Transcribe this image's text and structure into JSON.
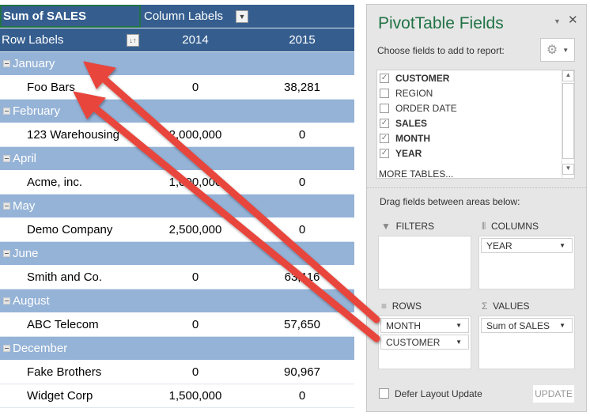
{
  "pivot": {
    "value_field": "Sum of SALES",
    "column_labels": "Column Labels",
    "row_labels": "Row Labels",
    "years": [
      "2014",
      "2015"
    ],
    "groups": [
      {
        "month": "January",
        "items": [
          {
            "customer": "Foo Bars",
            "y2014": "0",
            "y2015": "38,281"
          }
        ]
      },
      {
        "month": "February",
        "items": [
          {
            "customer": "123 Warehousing",
            "y2014": "2,000,000",
            "y2015": "0"
          }
        ]
      },
      {
        "month": "April",
        "items": [
          {
            "customer": "Acme, inc.",
            "y2014": "1,000,000",
            "y2015": "0"
          }
        ]
      },
      {
        "month": "May",
        "items": [
          {
            "customer": "Demo Company",
            "y2014": "2,500,000",
            "y2015": "0"
          }
        ]
      },
      {
        "month": "June",
        "items": [
          {
            "customer": "Smith and Co.",
            "y2014": "0",
            "y2015": "63,116"
          }
        ]
      },
      {
        "month": "August",
        "items": [
          {
            "customer": "ABC Telecom",
            "y2014": "0",
            "y2015": "57,650"
          }
        ]
      },
      {
        "month": "December",
        "items": [
          {
            "customer": "Fake Brothers",
            "y2014": "0",
            "y2015": "90,967"
          },
          {
            "customer": "Widget Corp",
            "y2014": "1,500,000",
            "y2015": "0"
          }
        ]
      }
    ]
  },
  "panel": {
    "title": "PivotTable Fields",
    "choose_label": "Choose fields to add to report:",
    "fields": [
      {
        "name": "CUSTOMER",
        "checked": true
      },
      {
        "name": "REGION",
        "checked": false
      },
      {
        "name": "ORDER DATE",
        "checked": false
      },
      {
        "name": "SALES",
        "checked": true
      },
      {
        "name": "MONTH",
        "checked": true
      },
      {
        "name": "YEAR",
        "checked": true
      }
    ],
    "more_tables": "MORE TABLES...",
    "drag_label": "Drag fields between areas below:",
    "filters_label": "FILTERS",
    "columns_label": "COLUMNS",
    "rows_label": "ROWS",
    "values_label": "VALUES",
    "columns_items": [
      "YEAR"
    ],
    "rows_items": [
      "MONTH",
      "CUSTOMER"
    ],
    "values_items": [
      "Sum of SALES"
    ],
    "defer_label": "Defer Layout Update",
    "update_label": "UPDATE"
  },
  "colors": {
    "header": "#355e8f",
    "band": "#95b3d7",
    "arrow": "#e8453c",
    "title": "#217346"
  }
}
